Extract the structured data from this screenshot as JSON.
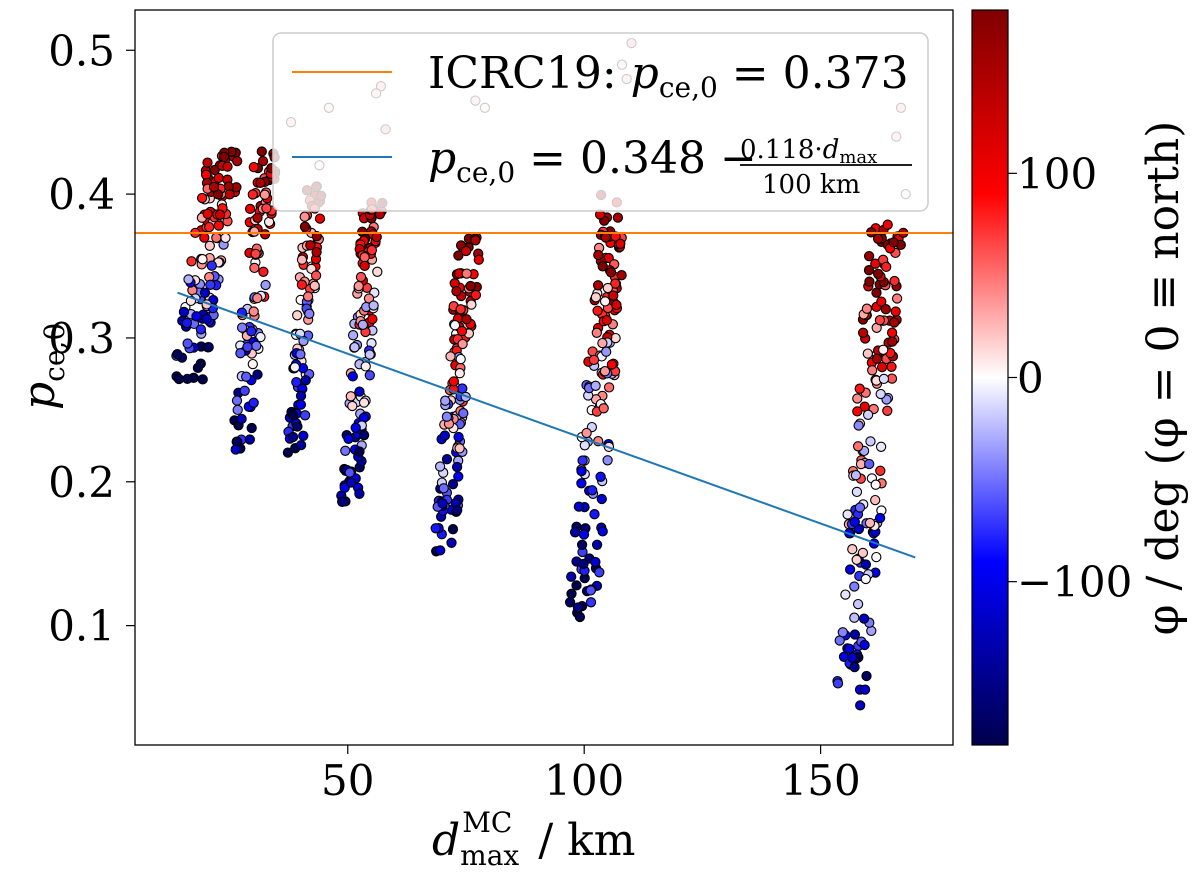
{
  "chart_data": {
    "type": "scatter",
    "title": "",
    "xlabel": {
      "main": "d",
      "sub": "max",
      "sup": "MC",
      "unit": "/ km"
    },
    "ylabel": {
      "main": "p",
      "sub": "ce,0"
    },
    "xlim": [
      5,
      178
    ],
    "ylim": [
      0.017,
      0.528
    ],
    "xticks": [
      50,
      100,
      150
    ],
    "yticks": [
      0.1,
      0.2,
      0.3,
      0.4,
      0.5
    ],
    "xtick_labels": [
      "50",
      "100",
      "150"
    ],
    "ytick_labels": [
      "0.1",
      "0.2",
      "0.3",
      "0.4",
      "0.5"
    ],
    "colorbar": {
      "label": "φ / deg (φ = 0 ≡ north)",
      "range": [
        -180,
        180
      ],
      "ticks": [
        -100,
        0,
        100
      ],
      "tick_labels": [
        "−100",
        "0",
        "100"
      ],
      "colormap": "seismic"
    },
    "reference_lines": [
      {
        "name": "ICRC19",
        "type": "horizontal",
        "y": 0.373,
        "color": "#ff7f0e",
        "label_prefix": "ICRC19: ",
        "label_var": "p",
        "label_sub": "ce,0",
        "label_rhs": "= 0.373"
      },
      {
        "name": "fit",
        "type": "line",
        "intercept": 0.348,
        "slope_per_100km": -0.118,
        "x_range": [
          14,
          170
        ],
        "color": "#1f77b4",
        "label_var": "p",
        "label_sub": "ce,0",
        "label_rhs": "= 0.348 −",
        "frac_num_coef": "0.118·",
        "frac_num_var": "d",
        "frac_num_sub": "max",
        "frac_den": "100 km"
      }
    ],
    "clusters": [
      {
        "x_center": 20,
        "x_spread": 6,
        "y_min": 0.27,
        "y_max": 0.43,
        "n": 130
      },
      {
        "x_center": 30,
        "x_spread": 4,
        "y_min": 0.22,
        "y_max": 0.43,
        "n": 100
      },
      {
        "x_center": 41,
        "x_spread": 3,
        "y_min": 0.22,
        "y_max": 0.41,
        "n": 90
      },
      {
        "x_center": 53,
        "x_spread": 3.5,
        "y_min": 0.185,
        "y_max": 0.4,
        "n": 120
      },
      {
        "x_center": 73,
        "x_spread": 4,
        "y_min": 0.15,
        "y_max": 0.37,
        "n": 130
      },
      {
        "x_center": 103,
        "x_spread": 5,
        "y_min": 0.105,
        "y_max": 0.4,
        "n": 150
      },
      {
        "x_center": 160,
        "x_spread": 6,
        "y_min": 0.04,
        "y_max": 0.38,
        "n": 170
      }
    ],
    "outliers": [
      {
        "x": 38,
        "y": 0.45,
        "phi": 20
      },
      {
        "x": 46,
        "y": 0.46,
        "phi": 15
      },
      {
        "x": 44,
        "y": 0.42,
        "phi": 10
      },
      {
        "x": 57,
        "y": 0.475,
        "phi": 25
      },
      {
        "x": 58,
        "y": 0.445,
        "phi": 30
      },
      {
        "x": 56,
        "y": 0.47,
        "phi": 15
      },
      {
        "x": 77,
        "y": 0.465,
        "phi": 20
      },
      {
        "x": 79,
        "y": 0.46,
        "phi": 10
      },
      {
        "x": 110,
        "y": 0.505,
        "phi": 30
      },
      {
        "x": 109,
        "y": 0.48,
        "phi": 20
      },
      {
        "x": 108,
        "y": 0.49,
        "phi": 15
      },
      {
        "x": 167,
        "y": 0.46,
        "phi": 25
      },
      {
        "x": 166,
        "y": 0.44,
        "phi": 20
      },
      {
        "x": 168,
        "y": 0.4,
        "phi": 10
      }
    ]
  }
}
